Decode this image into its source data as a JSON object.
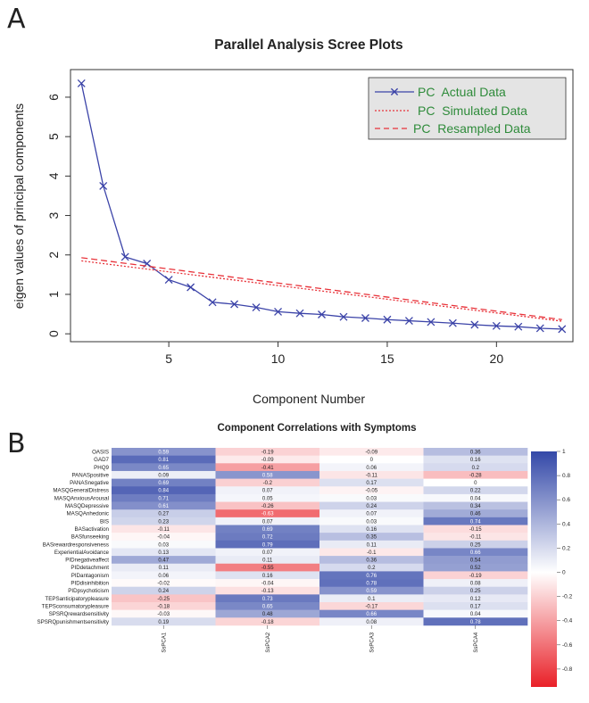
{
  "panels": {
    "a": "A",
    "b": "B"
  },
  "chart_data": [
    {
      "type": "line",
      "title": "Parallel Analysis Scree Plots",
      "xlabel": "Component Number",
      "ylabel": "eigen values of principal components",
      "xlim": [
        0.5,
        23.5
      ],
      "ylim": [
        -0.2,
        6.7
      ],
      "xticks": [
        5,
        10,
        15,
        20
      ],
      "yticks": [
        0,
        1,
        2,
        3,
        4,
        5,
        6
      ],
      "series": [
        {
          "name": "PC  Actual Data",
          "style": "solid-x",
          "color": "#3b43a8",
          "x": [
            1,
            2,
            3,
            4,
            5,
            6,
            7,
            8,
            9,
            10,
            11,
            12,
            13,
            14,
            15,
            16,
            17,
            18,
            19,
            20,
            21,
            22,
            23
          ],
          "values": [
            6.35,
            3.75,
            1.95,
            1.78,
            1.37,
            1.18,
            0.8,
            0.75,
            0.67,
            0.56,
            0.52,
            0.49,
            0.43,
            0.4,
            0.36,
            0.33,
            0.3,
            0.27,
            0.23,
            0.2,
            0.18,
            0.14,
            0.12
          ]
        },
        {
          "name": "PC  Simulated Data",
          "style": "dotted",
          "color": "#e8333a",
          "x": [
            1,
            23
          ],
          "values": [
            1.85,
            0.32
          ]
        },
        {
          "name": "PC  Resampled Data",
          "style": "dashed",
          "color": "#e8333a",
          "x": [
            1,
            23
          ],
          "values": [
            1.93,
            0.36
          ]
        }
      ]
    },
    {
      "type": "heatmap",
      "title": "Component Correlations with Symptoms",
      "columns": [
        "SsPCA1",
        "SsPCA2",
        "SsPCA3",
        "SsPCA4"
      ],
      "rows": [
        "OASIS",
        "GAD7",
        "PHQ9",
        "PANASpositive",
        "PANASnegative",
        "MASQGeneralDistress",
        "MASQAnxiousArousal",
        "MASQDepressive",
        "MASQAnhedonic",
        "BIS",
        "BASactivation",
        "BASfunseeking",
        "BASrewardresponsiveness",
        "ExperientialAvoidance",
        "PIDnegativeaffect",
        "PIDdetachment",
        "PIDantagonism",
        "PIDdisinhibition",
        "PIDpsychoticism",
        "TEPSanticipatorypleasure",
        "TEPSconsumatorypleasure",
        "SPSRQrewardsensitivity",
        "SPSRQpunishmentsensitivity"
      ],
      "values": [
        [
          "0.59",
          "-0.19",
          "-0.09",
          "0.36"
        ],
        [
          "0.81",
          "-0.09",
          "0",
          "0.16"
        ],
        [
          "0.65",
          "-0.41",
          "0.06",
          "0.2"
        ],
        [
          "0.09",
          "0.58",
          "-0.11",
          "-0.28"
        ],
        [
          "0.69",
          "-0.2",
          "0.17",
          "0"
        ],
        [
          "0.84",
          "0.07",
          "-0.05",
          "0.22"
        ],
        [
          "0.71",
          "0.05",
          "0.03",
          "0.04"
        ],
        [
          "0.61",
          "-0.26",
          "0.24",
          "0.34"
        ],
        [
          "0.27",
          "-0.63",
          "0.07",
          "0.46"
        ],
        [
          "0.23",
          "0.07",
          "0.03",
          "0.74"
        ],
        [
          "-0.11",
          "0.69",
          "0.16",
          "-0.15"
        ],
        [
          "-0.04",
          "0.72",
          "0.35",
          "-0.11"
        ],
        [
          "0.03",
          "0.79",
          "0.11",
          "0.25"
        ],
        [
          "0.13",
          "0.07",
          "-0.1",
          "0.66"
        ],
        [
          "0.47",
          "0.11",
          "0.36",
          "0.54"
        ],
        [
          "0.11",
          "-0.55",
          "0.2",
          "0.52"
        ],
        [
          "0.06",
          "0.16",
          "0.76",
          "-0.19"
        ],
        [
          "-0.02",
          "-0.04",
          "0.78",
          "0.08"
        ],
        [
          "0.24",
          "-0.13",
          "0.59",
          "0.25"
        ],
        [
          "-0.25",
          "0.73",
          "0.1",
          "0.12"
        ],
        [
          "-0.18",
          "0.65",
          "-0.17",
          "0.17"
        ],
        [
          "-0.03",
          "0.48",
          "0.66",
          "0.04"
        ],
        [
          "0.19",
          "-0.18",
          "0.08",
          "0.78"
        ]
      ],
      "colorbar": {
        "range": [
          -1,
          1
        ],
        "ticks": [
          "1",
          "0.8",
          "0.6",
          "0.4",
          "0.2",
          "0",
          "-0.2",
          "-0.4",
          "-0.6",
          "-0.8",
          "-1"
        ],
        "low_color": "#e8141c",
        "mid_color": "#ffffff",
        "high_color": "#3348a8"
      }
    }
  ]
}
